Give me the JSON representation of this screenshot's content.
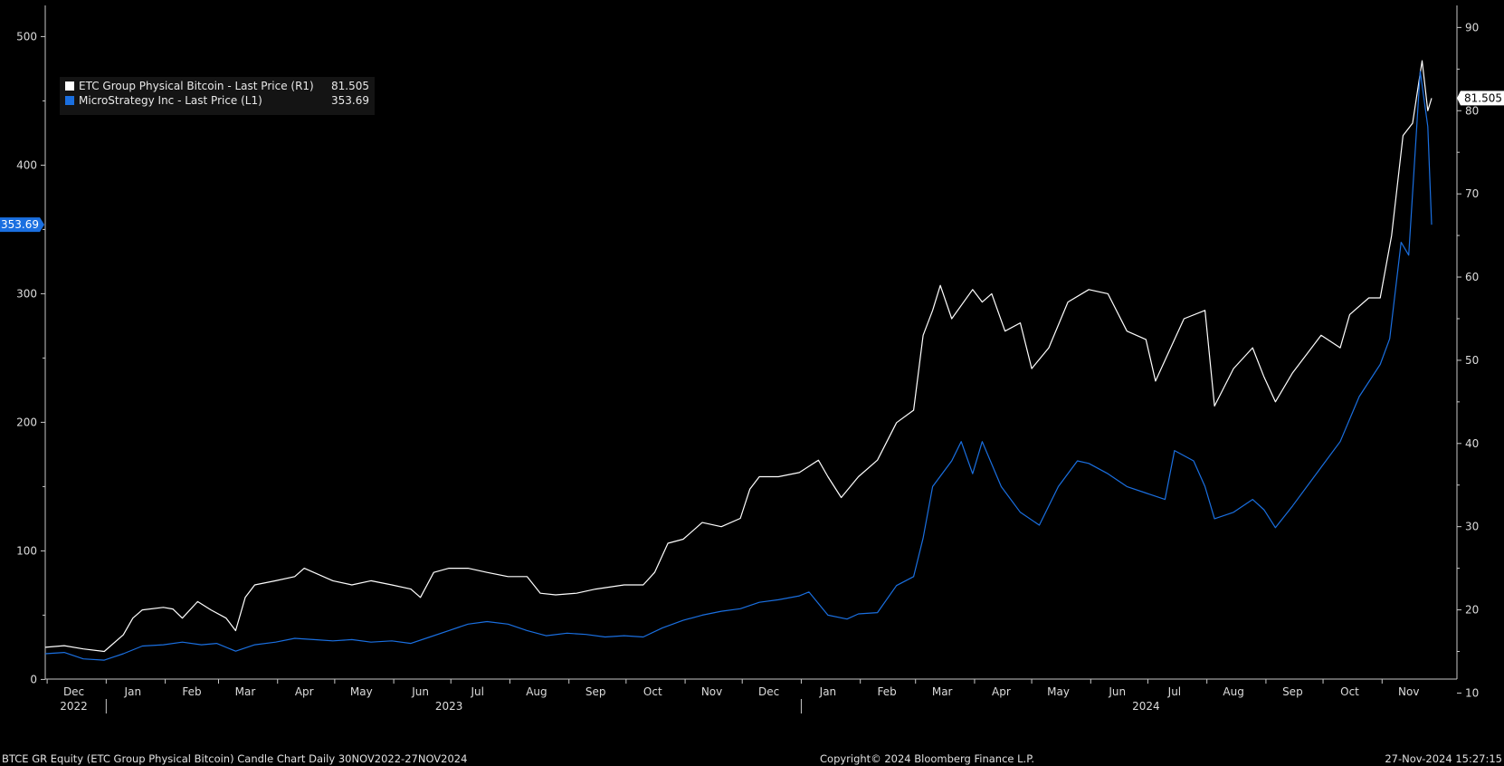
{
  "chart_data": {
    "type": "line",
    "left_axis": {
      "range": [
        -30,
        520
      ],
      "ticks": [
        0,
        100,
        200,
        300,
        400,
        500
      ],
      "tick_labels": [
        "0",
        "100",
        "200",
        "300",
        "400",
        "500"
      ],
      "last_value_label": "353.69"
    },
    "right_axis": {
      "range": [
        7,
        92
      ],
      "ticks": [
        10,
        20,
        30,
        40,
        50,
        60,
        70,
        80,
        90
      ],
      "tick_labels": [
        "10",
        "20",
        "30",
        "40",
        "50",
        "60",
        "70",
        "80",
        "90"
      ],
      "last_value_label": "81.505"
    },
    "x_axis": {
      "range": [
        "2022-11-30",
        "2024-11-27"
      ],
      "month_ticks": [
        {
          "date": "2022-12-15",
          "label": "Dec"
        },
        {
          "date": "2023-01-15",
          "label": "Jan"
        },
        {
          "date": "2023-02-15",
          "label": "Feb"
        },
        {
          "date": "2023-03-15",
          "label": "Mar"
        },
        {
          "date": "2023-04-15",
          "label": "Apr"
        },
        {
          "date": "2023-05-15",
          "label": "May"
        },
        {
          "date": "2023-06-15",
          "label": "Jun"
        },
        {
          "date": "2023-07-15",
          "label": "Jul"
        },
        {
          "date": "2023-08-15",
          "label": "Aug"
        },
        {
          "date": "2023-09-15",
          "label": "Sep"
        },
        {
          "date": "2023-10-15",
          "label": "Oct"
        },
        {
          "date": "2023-11-15",
          "label": "Nov"
        },
        {
          "date": "2023-12-15",
          "label": "Dec"
        },
        {
          "date": "2024-01-15",
          "label": "Jan"
        },
        {
          "date": "2024-02-15",
          "label": "Feb"
        },
        {
          "date": "2024-03-15",
          "label": "Mar"
        },
        {
          "date": "2024-04-15",
          "label": "Apr"
        },
        {
          "date": "2024-05-15",
          "label": "May"
        },
        {
          "date": "2024-06-15",
          "label": "Jun"
        },
        {
          "date": "2024-07-15",
          "label": "Jul"
        },
        {
          "date": "2024-08-15",
          "label": "Aug"
        },
        {
          "date": "2024-09-15",
          "label": "Sep"
        },
        {
          "date": "2024-10-15",
          "label": "Oct"
        },
        {
          "date": "2024-11-15",
          "label": "Nov"
        }
      ],
      "year_labels": [
        {
          "date": "2022-12-15",
          "label": "2022"
        },
        {
          "date": "2023-06-30",
          "label": "2023"
        },
        {
          "date": "2024-06-30",
          "label": "2024"
        }
      ],
      "year_boundaries": [
        "2023-01-01",
        "2024-01-01"
      ]
    },
    "legend": {
      "placement": "top-left",
      "entries": [
        {
          "label": "ETC Group Physical Bitcoin - Last Price (R1)",
          "value": "81.505",
          "color": "#ffffff"
        },
        {
          "label": "MicroStrategy Inc - Last Price (L1)",
          "value": "353.69",
          "color": "#1a6fe0"
        }
      ]
    },
    "series": [
      {
        "name": "ETC Group Physical Bitcoin - Last Price (R1)",
        "axis": "right",
        "color": "#ffffff",
        "points": [
          [
            "2022-11-30",
            15.5
          ],
          [
            "2022-12-10",
            15.7
          ],
          [
            "2022-12-20",
            15.3
          ],
          [
            "2022-12-31",
            15.0
          ],
          [
            "2023-01-10",
            17.0
          ],
          [
            "2023-01-15",
            19.0
          ],
          [
            "2023-01-20",
            20.0
          ],
          [
            "2023-01-31",
            20.3
          ],
          [
            "2023-02-05",
            20.1
          ],
          [
            "2023-02-10",
            19.0
          ],
          [
            "2023-02-18",
            21.0
          ],
          [
            "2023-02-25",
            20.0
          ],
          [
            "2023-03-05",
            19.0
          ],
          [
            "2023-03-10",
            17.5
          ],
          [
            "2023-03-15",
            21.5
          ],
          [
            "2023-03-20",
            23.0
          ],
          [
            "2023-03-31",
            23.5
          ],
          [
            "2023-04-10",
            24.0
          ],
          [
            "2023-04-15",
            25.0
          ],
          [
            "2023-04-20",
            24.5
          ],
          [
            "2023-04-30",
            23.5
          ],
          [
            "2023-05-10",
            23.0
          ],
          [
            "2023-05-20",
            23.5
          ],
          [
            "2023-05-31",
            23.0
          ],
          [
            "2023-06-10",
            22.5
          ],
          [
            "2023-06-15",
            21.5
          ],
          [
            "2023-06-22",
            24.5
          ],
          [
            "2023-06-30",
            25.0
          ],
          [
            "2023-07-10",
            25.0
          ],
          [
            "2023-07-20",
            24.5
          ],
          [
            "2023-07-31",
            24.0
          ],
          [
            "2023-08-10",
            24.0
          ],
          [
            "2023-08-17",
            22.0
          ],
          [
            "2023-08-25",
            21.8
          ],
          [
            "2023-09-05",
            22.0
          ],
          [
            "2023-09-15",
            22.5
          ],
          [
            "2023-09-30",
            23.0
          ],
          [
            "2023-10-10",
            23.0
          ],
          [
            "2023-10-16",
            24.5
          ],
          [
            "2023-10-23",
            28.0
          ],
          [
            "2023-10-31",
            28.5
          ],
          [
            "2023-11-10",
            30.5
          ],
          [
            "2023-11-20",
            30.0
          ],
          [
            "2023-11-30",
            31.0
          ],
          [
            "2023-12-05",
            34.5
          ],
          [
            "2023-12-10",
            36.0
          ],
          [
            "2023-12-20",
            36.0
          ],
          [
            "2023-12-31",
            36.5
          ],
          [
            "2024-01-10",
            38.0
          ],
          [
            "2024-01-15",
            36.0
          ],
          [
            "2024-01-22",
            33.5
          ],
          [
            "2024-01-31",
            36.0
          ],
          [
            "2024-02-10",
            38.0
          ],
          [
            "2024-02-20",
            42.5
          ],
          [
            "2024-02-29",
            44.0
          ],
          [
            "2024-03-05",
            53.0
          ],
          [
            "2024-03-10",
            56.0
          ],
          [
            "2024-03-14",
            59.0
          ],
          [
            "2024-03-20",
            55.0
          ],
          [
            "2024-03-31",
            58.5
          ],
          [
            "2024-04-05",
            57.0
          ],
          [
            "2024-04-10",
            58.0
          ],
          [
            "2024-04-17",
            53.5
          ],
          [
            "2024-04-25",
            54.5
          ],
          [
            "2024-05-01",
            49.0
          ],
          [
            "2024-05-10",
            51.5
          ],
          [
            "2024-05-20",
            57.0
          ],
          [
            "2024-05-31",
            58.5
          ],
          [
            "2024-06-10",
            58.0
          ],
          [
            "2024-06-20",
            53.5
          ],
          [
            "2024-06-30",
            52.5
          ],
          [
            "2024-07-05",
            47.5
          ],
          [
            "2024-07-15",
            52.5
          ],
          [
            "2024-07-20",
            55.0
          ],
          [
            "2024-07-31",
            56.0
          ],
          [
            "2024-08-05",
            44.5
          ],
          [
            "2024-08-15",
            49.0
          ],
          [
            "2024-08-25",
            51.5
          ],
          [
            "2024-08-31",
            48.0
          ],
          [
            "2024-09-06",
            45.0
          ],
          [
            "2024-09-15",
            48.5
          ],
          [
            "2024-09-30",
            53.0
          ],
          [
            "2024-10-10",
            51.5
          ],
          [
            "2024-10-15",
            55.5
          ],
          [
            "2024-10-25",
            57.5
          ],
          [
            "2024-10-31",
            57.5
          ],
          [
            "2024-11-06",
            65.0
          ],
          [
            "2024-11-12",
            77.0
          ],
          [
            "2024-11-17",
            78.5
          ],
          [
            "2024-11-22",
            86.0
          ],
          [
            "2024-11-25",
            80.0
          ],
          [
            "2024-11-27",
            81.505
          ]
        ]
      },
      {
        "name": "MicroStrategy Inc - Last Price (L1)",
        "axis": "left",
        "color": "#1a6fe0",
        "points": [
          [
            "2022-11-30",
            20
          ],
          [
            "2022-12-10",
            21
          ],
          [
            "2022-12-20",
            16
          ],
          [
            "2022-12-31",
            15
          ],
          [
            "2023-01-10",
            20
          ],
          [
            "2023-01-20",
            26
          ],
          [
            "2023-01-31",
            27
          ],
          [
            "2023-02-10",
            29
          ],
          [
            "2023-02-20",
            27
          ],
          [
            "2023-02-28",
            28
          ],
          [
            "2023-03-10",
            22
          ],
          [
            "2023-03-20",
            27
          ],
          [
            "2023-03-31",
            29
          ],
          [
            "2023-04-10",
            32
          ],
          [
            "2023-04-20",
            31
          ],
          [
            "2023-04-30",
            30
          ],
          [
            "2023-05-10",
            31
          ],
          [
            "2023-05-20",
            29
          ],
          [
            "2023-05-31",
            30
          ],
          [
            "2023-06-10",
            28
          ],
          [
            "2023-06-20",
            33
          ],
          [
            "2023-06-30",
            38
          ],
          [
            "2023-07-10",
            43
          ],
          [
            "2023-07-20",
            45
          ],
          [
            "2023-07-31",
            43
          ],
          [
            "2023-08-10",
            38
          ],
          [
            "2023-08-20",
            34
          ],
          [
            "2023-08-31",
            36
          ],
          [
            "2023-09-10",
            35
          ],
          [
            "2023-09-20",
            33
          ],
          [
            "2023-09-30",
            34
          ],
          [
            "2023-10-10",
            33
          ],
          [
            "2023-10-20",
            40
          ],
          [
            "2023-10-31",
            46
          ],
          [
            "2023-11-10",
            50
          ],
          [
            "2023-11-20",
            53
          ],
          [
            "2023-11-30",
            55
          ],
          [
            "2023-12-10",
            60
          ],
          [
            "2023-12-20",
            62
          ],
          [
            "2023-12-31",
            65
          ],
          [
            "2024-01-05",
            68
          ],
          [
            "2024-01-15",
            50
          ],
          [
            "2024-01-25",
            47
          ],
          [
            "2024-01-31",
            51
          ],
          [
            "2024-02-10",
            52
          ],
          [
            "2024-02-20",
            73
          ],
          [
            "2024-02-29",
            80
          ],
          [
            "2024-03-05",
            110
          ],
          [
            "2024-03-10",
            150
          ],
          [
            "2024-03-20",
            170
          ],
          [
            "2024-03-25",
            185
          ],
          [
            "2024-03-31",
            160
          ],
          [
            "2024-04-05",
            185
          ],
          [
            "2024-04-15",
            150
          ],
          [
            "2024-04-25",
            130
          ],
          [
            "2024-05-05",
            120
          ],
          [
            "2024-05-15",
            150
          ],
          [
            "2024-05-25",
            170
          ],
          [
            "2024-05-31",
            168
          ],
          [
            "2024-06-10",
            160
          ],
          [
            "2024-06-20",
            150
          ],
          [
            "2024-06-30",
            145
          ],
          [
            "2024-07-10",
            140
          ],
          [
            "2024-07-15",
            178
          ],
          [
            "2024-07-25",
            170
          ],
          [
            "2024-07-31",
            150
          ],
          [
            "2024-08-05",
            125
          ],
          [
            "2024-08-15",
            130
          ],
          [
            "2024-08-25",
            140
          ],
          [
            "2024-08-31",
            132
          ],
          [
            "2024-09-06",
            118
          ],
          [
            "2024-09-15",
            135
          ],
          [
            "2024-09-30",
            165
          ],
          [
            "2024-10-10",
            185
          ],
          [
            "2024-10-20",
            220
          ],
          [
            "2024-10-31",
            245
          ],
          [
            "2024-11-05",
            265
          ],
          [
            "2024-11-11",
            340
          ],
          [
            "2024-11-15",
            330
          ],
          [
            "2024-11-21",
            473
          ],
          [
            "2024-11-25",
            430
          ],
          [
            "2024-11-27",
            353.69
          ]
        ]
      }
    ]
  },
  "footer": {
    "left": "BTCE GR Equity (ETC Group Physical Bitcoin) Candle Chart  Daily 30NOV2022-27NOV2024",
    "center": "Copyright© 2024 Bloomberg Finance L.P.",
    "right": "27-Nov-2024 15:27:15"
  },
  "colors": {
    "background": "#000000",
    "axis": "#c8c8c8",
    "text": "#dcdcdc",
    "white_series": "#ffffff",
    "blue_series": "#1a6fe0",
    "legend_bg": "#141414"
  }
}
